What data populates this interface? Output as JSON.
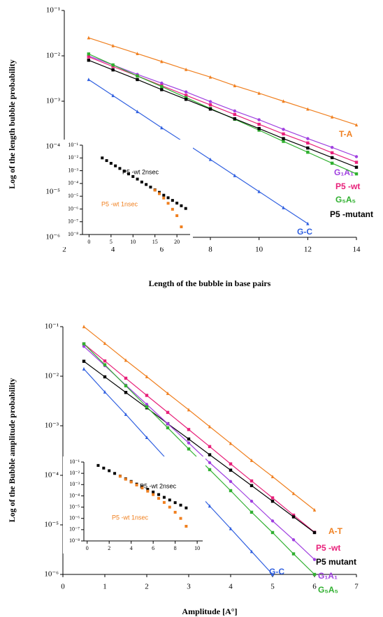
{
  "chart_data": [
    {
      "type": "scatter",
      "log_y": true,
      "xlabel": "Length of the bubble in base pairs",
      "ylabel": "Log of the length bubble probability",
      "xlim": [
        2,
        14
      ],
      "xticks": [
        2,
        4,
        6,
        8,
        10,
        12,
        14
      ],
      "ylim": [
        1e-06,
        0.1
      ],
      "yticks": [
        {
          "value": 0.1,
          "label": "10⁻¹"
        },
        {
          "value": 0.01,
          "label": "10⁻²"
        },
        {
          "value": 0.001,
          "label": "10⁻³"
        },
        {
          "value": 0.0001,
          "label": "10⁻⁴"
        },
        {
          "value": 1e-05,
          "label": "10⁻⁵"
        },
        {
          "value": 1e-06,
          "label": "10⁻⁶"
        }
      ],
      "line": true,
      "series": [
        {
          "name": "T-A",
          "color": "#f08020",
          "marker": "triangle",
          "x": [
            3,
            4,
            5,
            6,
            7,
            8,
            9,
            10,
            11,
            12,
            13,
            14
          ],
          "values": [
            0.025,
            0.0167,
            0.0112,
            0.0075,
            0.005,
            0.0034,
            0.0022,
            0.0015,
            0.001,
            0.00067,
            0.00045,
            0.0003
          ]
        },
        {
          "name": "G₁A₁",
          "color": "#a040e0",
          "marker": "circle",
          "x": [
            3,
            4,
            5,
            6,
            7,
            8,
            9,
            10,
            11,
            12,
            13,
            14
          ],
          "values": [
            0.01,
            0.0063,
            0.0039,
            0.0025,
            0.0016,
            0.00098,
            0.00061,
            0.00039,
            0.00024,
            0.00015,
            9.6e-05,
            6e-05
          ]
        },
        {
          "name": "P5 -wt",
          "color": "#e8207a",
          "marker": "square",
          "x": [
            3,
            4,
            5,
            6,
            7,
            8,
            9,
            10,
            11,
            12,
            13,
            14
          ],
          "values": [
            0.0095,
            0.0058,
            0.0036,
            0.0022,
            0.00135,
            0.00083,
            0.00051,
            0.00031,
            0.00019,
            0.00012,
            7.3e-05,
            4.5e-05
          ]
        },
        {
          "name": "G₅A₅",
          "color": "#30b030",
          "marker": "square",
          "x": [
            3,
            4,
            5,
            6,
            7,
            8,
            9,
            10,
            11,
            12,
            13,
            14
          ],
          "values": [
            0.011,
            0.0063,
            0.0036,
            0.0021,
            0.0012,
            0.00069,
            0.0004,
            0.00023,
            0.00013,
            7.5e-05,
            4.3e-05,
            2.5e-05
          ]
        },
        {
          "name": "P5 -mutant",
          "color": "#000000",
          "marker": "square",
          "x": [
            3,
            4,
            5,
            6,
            7,
            8,
            9,
            10,
            11,
            12,
            13,
            14
          ],
          "values": [
            0.008,
            0.0049,
            0.003,
            0.0018,
            0.0011,
            0.00067,
            0.00041,
            0.00025,
            0.00015,
            9.3e-05,
            5.7e-05,
            3.5e-05
          ]
        },
        {
          "name": "G-C",
          "color": "#3060e0",
          "marker": "triangle",
          "x": [
            3,
            4,
            5,
            6,
            7,
            8,
            9,
            10,
            11,
            12
          ],
          "values": [
            0.003,
            0.00133,
            0.00059,
            0.00026,
            0.000117,
            5.2e-05,
            2.3e-05,
            1.02e-05,
            4.5e-06,
            2e-06
          ]
        }
      ]
    },
    {
      "type": "scatter",
      "log_y": true,
      "xlim": [
        -1.5,
        23
      ],
      "xticks": [
        0,
        5,
        10,
        15,
        20
      ],
      "ylim": [
        1e-08,
        0.1
      ],
      "yticks": [
        {
          "value": 0.1,
          "label": "10⁻¹"
        },
        {
          "value": 0.01,
          "label": "10⁻²"
        },
        {
          "value": 0.001,
          "label": "10⁻³"
        },
        {
          "value": 0.0001,
          "label": "10⁻⁴"
        },
        {
          "value": 1e-05,
          "label": "10⁻⁵"
        },
        {
          "value": 1e-06,
          "label": "10⁻⁶"
        },
        {
          "value": 1e-07,
          "label": "10⁻⁷"
        },
        {
          "value": 1e-08,
          "label": "10⁻⁸"
        }
      ],
      "line": false,
      "series": [
        {
          "name": "P5 -wt 2nsec",
          "color": "#000000",
          "marker": "square",
          "x": [
            3,
            4,
            5,
            6,
            7,
            8,
            9,
            10,
            11,
            12,
            13,
            14,
            15,
            16,
            17,
            18,
            19,
            20,
            21,
            22
          ],
          "values": [
            0.01,
            0.0062,
            0.0038,
            0.0024,
            0.0015,
            0.00091,
            0.00056,
            0.00035,
            0.00022,
            0.00013,
            8.3e-05,
            5.2e-05,
            3.2e-05,
            2e-05,
            1.2e-05,
            7.6e-06,
            4.7e-06,
            2.9e-06,
            1.8e-06,
            1.1e-06
          ]
        },
        {
          "name": "P5 -wt 1nsec",
          "color": "#f08020",
          "marker": "square",
          "x": [
            15,
            16,
            17,
            18,
            19,
            20,
            21
          ],
          "values": [
            3e-05,
            1.6e-05,
            7.2e-06,
            2.8e-06,
            9.5e-07,
            3e-07,
            4e-08
          ]
        }
      ]
    },
    {
      "type": "scatter",
      "log_y": true,
      "xlabel": "Amplitude [A°]",
      "ylabel": "Log of the Bubble amplitude probability",
      "xlim": [
        0,
        7
      ],
      "xticks": [
        0,
        1,
        2,
        3,
        4,
        5,
        6,
        7
      ],
      "ylim": [
        1e-06,
        0.1
      ],
      "yticks": [
        {
          "value": 0.1,
          "label": "10⁻¹"
        },
        {
          "value": 0.01,
          "label": "10⁻²"
        },
        {
          "value": 0.001,
          "label": "10⁻³"
        },
        {
          "value": 0.0001,
          "label": "10⁻⁴"
        },
        {
          "value": 1e-05,
          "label": "10⁻⁵"
        },
        {
          "value": 1e-06,
          "label": "10⁻⁶"
        }
      ],
      "line": true,
      "series": [
        {
          "name": "A-T",
          "color": "#f08020",
          "marker": "triangle",
          "x": [
            0.5,
            1,
            1.5,
            2,
            2.5,
            3,
            3.5,
            4,
            4.5,
            5,
            5.5,
            6
          ],
          "values": [
            0.1,
            0.046,
            0.021,
            0.0098,
            0.0045,
            0.0021,
            0.00096,
            0.00044,
            0.0002,
            9.4e-05,
            4.3e-05,
            2e-05
          ]
        },
        {
          "name": "P5 -wt",
          "color": "#e8207a",
          "marker": "square",
          "x": [
            0.5,
            1,
            1.5,
            2,
            2.5,
            3,
            3.5,
            4,
            4.5,
            5,
            5.5,
            6
          ],
          "values": [
            0.045,
            0.0203,
            0.0091,
            0.0041,
            0.00186,
            0.00084,
            0.00038,
            0.00017,
            7.7e-05,
            3.5e-05,
            1.57e-05,
            7.1e-06
          ]
        },
        {
          "name": "P5 mutant",
          "color": "#000000",
          "marker": "square",
          "x": [
            0.5,
            1,
            1.5,
            2,
            2.5,
            3,
            3.5,
            4,
            4.5,
            5,
            5.5,
            6
          ],
          "values": [
            0.02,
            0.0097,
            0.0047,
            0.0023,
            0.0011,
            0.00054,
            0.00026,
            0.000127,
            6.2e-05,
            3e-05,
            1.45e-05,
            7e-06
          ]
        },
        {
          "name": "G₁A₁",
          "color": "#a040e0",
          "marker": "circle",
          "x": [
            0.5,
            1,
            1.5,
            2,
            2.5,
            3,
            3.5,
            4,
            4.5,
            5,
            5.5,
            6
          ],
          "values": [
            0.04,
            0.0163,
            0.0066,
            0.0027,
            0.0011,
            0.00045,
            0.00018,
            7.5e-05,
            3e-05,
            1.2e-05,
            5e-06,
            2e-06
          ]
        },
        {
          "name": "G₅A₅",
          "color": "#30b030",
          "marker": "square",
          "x": [
            0.5,
            1,
            1.5,
            2,
            2.5,
            3,
            3.5,
            4,
            4.5,
            5,
            5.5,
            6
          ],
          "values": [
            0.045,
            0.017,
            0.0064,
            0.0024,
            0.00091,
            0.00034,
            0.00013,
            4.9e-05,
            1.8e-05,
            7e-06,
            2.6e-06,
            1e-06
          ]
        },
        {
          "name": "G-C",
          "color": "#3060e0",
          "marker": "triangle",
          "x": [
            0.5,
            1,
            1.5,
            2,
            2.5,
            3,
            3.5,
            4,
            4.5,
            5
          ],
          "values": [
            0.014,
            0.0048,
            0.0017,
            0.00058,
            0.0002,
            7e-05,
            2.4e-05,
            8.4e-06,
            2.9e-06,
            1e-06
          ]
        }
      ]
    },
    {
      "type": "scatter",
      "log_y": true,
      "xlim": [
        -0.3,
        10.5
      ],
      "xticks": [
        0,
        2,
        4,
        6,
        8,
        10
      ],
      "ylim": [
        1e-08,
        0.1
      ],
      "yticks": [
        {
          "value": 0.1,
          "label": "10⁻¹"
        },
        {
          "value": 0.01,
          "label": "10⁻²"
        },
        {
          "value": 0.001,
          "label": "10⁻³"
        },
        {
          "value": 0.0001,
          "label": "10⁻⁴"
        },
        {
          "value": 1e-05,
          "label": "10⁻⁵"
        },
        {
          "value": 1e-06,
          "label": "10⁻⁶"
        },
        {
          "value": 1e-07,
          "label": "10⁻⁷"
        },
        {
          "value": 1e-08,
          "label": "10⁻⁸"
        }
      ],
      "line": false,
      "series": [
        {
          "name": "P5 -wt 2nsec",
          "color": "#000000",
          "marker": "square",
          "x": [
            1,
            1.5,
            2,
            2.5,
            3,
            3.5,
            4,
            4.5,
            5,
            5.5,
            6,
            6.5,
            7,
            7.5,
            8,
            8.5,
            9
          ],
          "values": [
            0.05,
            0.029,
            0.017,
            0.0098,
            0.0057,
            0.0033,
            0.0019,
            0.0011,
            0.00065,
            0.00038,
            0.00022,
            0.00013,
            7.4e-05,
            4.3e-05,
            2.5e-05,
            1.5e-05,
            8.5e-06
          ]
        },
        {
          "name": "P5 -wt 1nsec",
          "color": "#f08020",
          "marker": "square",
          "x": [
            3,
            3.5,
            4,
            4.5,
            5,
            5.5,
            6,
            6.5,
            7,
            7.5,
            8,
            8.5,
            9
          ],
          "values": [
            0.0055,
            0.003,
            0.0017,
            0.00092,
            0.0005,
            0.00026,
            0.00013,
            6e-05,
            2.6e-05,
            1e-05,
            3.5e-06,
            1e-06,
            2e-07
          ]
        }
      ]
    }
  ]
}
